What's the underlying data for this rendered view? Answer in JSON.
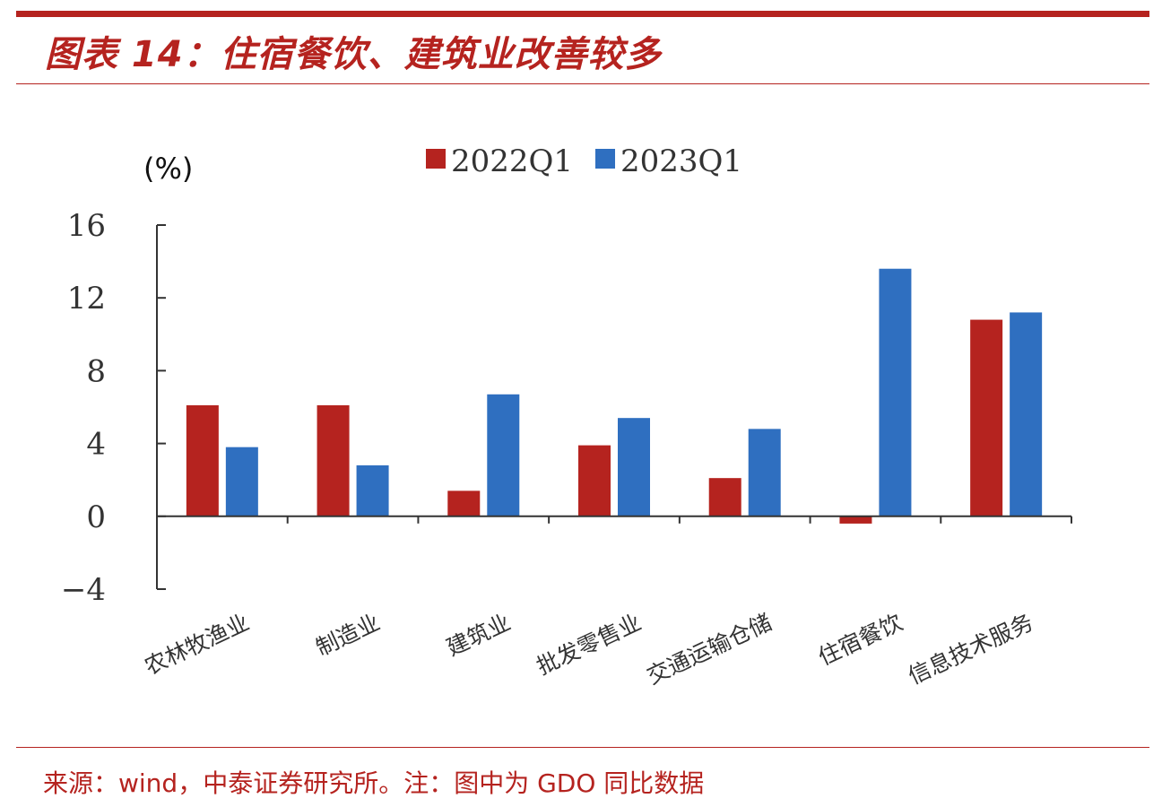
{
  "header": {
    "title": "图表 14：住宿餐饮、建筑业改善较多"
  },
  "footer": {
    "source": "来源：wind，中泰证券研究所。注：图中为 GDO 同比数据"
  },
  "colors": {
    "brand_red": "#b5231f",
    "series_2022": "#b5231f",
    "series_2023": "#2f6fc0"
  },
  "chart_data": {
    "type": "bar",
    "title": "",
    "ylabel": "(%)",
    "xlabel": "",
    "ylim": [
      -4,
      16
    ],
    "yticks": [
      16,
      12,
      8,
      4,
      0,
      -4
    ],
    "ytick_labels": [
      "16",
      "12",
      "8",
      "4",
      "0",
      "−4"
    ],
    "legend_position": "top",
    "categories": [
      "农林牧渔业",
      "制造业",
      "建筑业",
      "批发零售业",
      "交通运输仓储",
      "住宿餐饮",
      "信息技术服务"
    ],
    "series": [
      {
        "name": "2022Q1",
        "values": [
          6.1,
          6.1,
          1.4,
          3.9,
          2.1,
          -0.4,
          10.8
        ]
      },
      {
        "name": "2023Q1",
        "values": [
          3.8,
          2.8,
          6.7,
          5.4,
          4.8,
          13.6,
          11.2
        ]
      }
    ]
  }
}
